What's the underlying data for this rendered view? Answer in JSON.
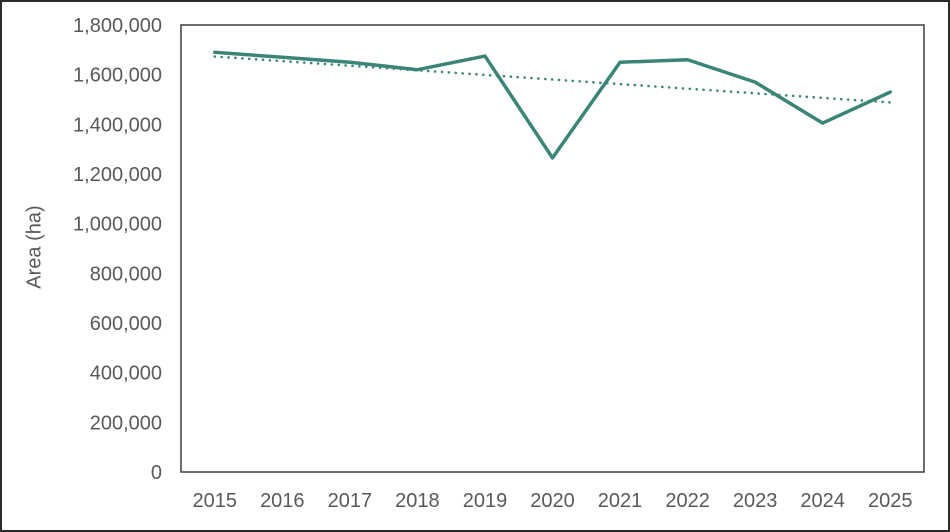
{
  "chart_data": {
    "type": "line",
    "title": "",
    "xlabel": "",
    "ylabel": "Area (ha)",
    "x": [
      "2015",
      "2016",
      "2017",
      "2018",
      "2019",
      "2020",
      "2021",
      "2022",
      "2023",
      "2024",
      "2025"
    ],
    "series": [
      {
        "name": "Area",
        "style": "solid",
        "values": [
          1690000,
          1670000,
          1650000,
          1620000,
          1675000,
          1265000,
          1650000,
          1660000,
          1570000,
          1405000,
          1530000
        ]
      }
    ],
    "trendline": {
      "name": "Linear trend",
      "style": "dotted",
      "start_value": 1673000,
      "end_value": 1488000
    },
    "ylim": [
      0,
      1800000
    ],
    "ytick_step": 200000,
    "ytick_labels": [
      "0",
      "200,000",
      "400,000",
      "600,000",
      "800,000",
      "1,000,000",
      "1,200,000",
      "1,400,000",
      "1,600,000",
      "1,800,000"
    ],
    "grid": false,
    "legend": "none",
    "colors": {
      "line": "#3A8577",
      "trend": "#3A8577",
      "axis_border": "#3F3F3F",
      "text": "#595959",
      "outer_border": "#2B2B2B",
      "background": "#FFFFFF"
    }
  }
}
